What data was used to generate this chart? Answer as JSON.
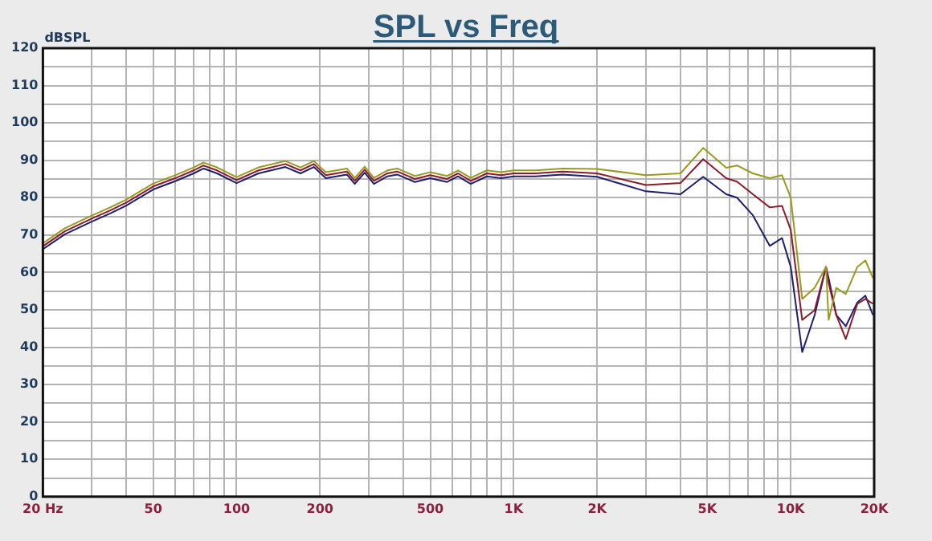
{
  "chart_data": {
    "type": "line",
    "title": "SPL vs Freq",
    "ylabel": "dBSPL",
    "log": "x",
    "grid": true,
    "legend": false,
    "marker": "none",
    "xlim": [
      20,
      20000
    ],
    "ylim": [
      0,
      120
    ],
    "xticks": [
      {
        "value": 20,
        "label": "20 Hz"
      },
      {
        "value": 30,
        "label": null
      },
      {
        "value": 40,
        "label": null
      },
      50,
      {
        "value": 60,
        "label": null
      },
      {
        "value": 70,
        "label": null
      },
      {
        "value": 80,
        "label": null
      },
      {
        "value": 90,
        "label": null
      },
      100,
      200,
      {
        "value": 300,
        "label": null
      },
      {
        "value": 400,
        "label": null
      },
      500,
      {
        "value": 600,
        "label": null
      },
      {
        "value": 700,
        "label": null
      },
      {
        "value": 800,
        "label": null
      },
      {
        "value": 900,
        "label": null
      },
      {
        "value": 1000,
        "label": "1K"
      },
      {
        "value": 2000,
        "label": "2K"
      },
      {
        "value": 3000,
        "label": null
      },
      {
        "value": 4000,
        "label": null
      },
      {
        "value": 5000,
        "label": "5K"
      },
      {
        "value": 6000,
        "label": null
      },
      {
        "value": 7000,
        "label": null
      },
      {
        "value": 8000,
        "label": null
      },
      {
        "value": 9000,
        "label": null
      },
      {
        "value": 10000,
        "label": "10K"
      },
      {
        "value": 20000,
        "label": "20K"
      }
    ],
    "yticks": [
      0,
      {
        "value": 5,
        "label": null
      },
      10,
      {
        "value": 15,
        "label": null
      },
      20,
      {
        "value": 25,
        "label": null
      },
      30,
      {
        "value": 35,
        "label": null
      },
      40,
      {
        "value": 45,
        "label": null
      },
      50,
      {
        "value": 55,
        "label": null
      },
      60,
      {
        "value": 65,
        "label": null
      },
      70,
      {
        "value": 75,
        "label": null
      },
      80,
      {
        "value": 85,
        "label": null
      },
      90,
      {
        "value": 95,
        "label": null
      },
      100,
      {
        "value": 105,
        "label": null
      },
      110,
      {
        "value": 115,
        "label": null
      },
      120
    ],
    "x": [
      20,
      24,
      30,
      35,
      40,
      50,
      60,
      70,
      76,
      85,
      100,
      120,
      150,
      170,
      190,
      210,
      250,
      267,
      290,
      313,
      350,
      380,
      440,
      500,
      575,
      630,
      700,
      800,
      900,
      1000,
      1200,
      1500,
      2000,
      3000,
      4000,
      4830,
      5850,
      6400,
      7300,
      8400,
      9300,
      10000,
      11000,
      12200,
      13400,
      13700,
      14600,
      15800,
      17400,
      18600,
      19800
    ],
    "series": [
      {
        "color": "#9a9a1e",
        "values": [
          67.8,
          71.8,
          75.2,
          77.4,
          79.5,
          83.8,
          86,
          88.1,
          89.4,
          88.1,
          85.5,
          88.1,
          89.8,
          88.1,
          89.8,
          86.8,
          87.8,
          85.3,
          88.3,
          85.3,
          87.3,
          87.8,
          85.8,
          86.8,
          85.8,
          87.3,
          85.3,
          87.3,
          86.8,
          87.3,
          87.3,
          87.8,
          87.7,
          86,
          86.5,
          93.3,
          88,
          88.6,
          86.5,
          85.2,
          86,
          80,
          52.9,
          55.9,
          61.5,
          47.3,
          55.9,
          54.2,
          61.5,
          63.2,
          58.5
        ]
      },
      {
        "color": "#8b1a2a",
        "values": [
          67,
          71,
          74.4,
          76.6,
          78.7,
          83,
          85.2,
          87.3,
          88.6,
          87.3,
          84.7,
          87.3,
          89,
          87.3,
          89,
          86,
          87,
          84.5,
          87.5,
          84.5,
          86.5,
          87,
          85,
          86,
          85,
          86.5,
          84.5,
          86.5,
          86,
          86.5,
          86.5,
          87,
          86.5,
          83.4,
          83.9,
          90.3,
          85.2,
          84.3,
          80.9,
          77.4,
          77.8,
          71.4,
          47.3,
          49.9,
          61.5,
          57.2,
          48.6,
          42.2,
          51.6,
          52.9,
          51.6
        ]
      },
      {
        "color": "#1e1e6e",
        "values": [
          66.2,
          70.2,
          73.6,
          75.8,
          77.9,
          82.2,
          84.4,
          86.5,
          87.8,
          86.5,
          83.9,
          86.5,
          88.2,
          86.5,
          88.2,
          85.2,
          86.2,
          83.7,
          86.7,
          83.7,
          85.7,
          86.2,
          84.2,
          85.2,
          84.2,
          85.7,
          83.7,
          85.7,
          85.2,
          85.7,
          85.7,
          86.2,
          85.6,
          81.7,
          80.9,
          85.6,
          80.9,
          80,
          75.3,
          67.1,
          69.2,
          61.5,
          38.7,
          48.6,
          61.5,
          58.5,
          48.6,
          45.6,
          52,
          53.8,
          48.6
        ]
      }
    ]
  }
}
